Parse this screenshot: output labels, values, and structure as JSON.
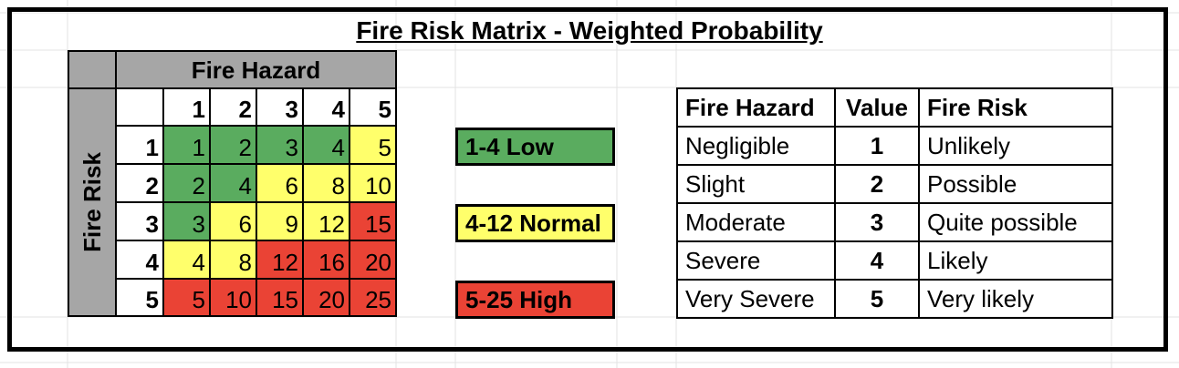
{
  "title": "Fire Risk Matrix - Weighted Probability",
  "matrix": {
    "hazard_label": "Fire Hazard",
    "risk_label": "Fire Risk",
    "columns": [
      "1",
      "2",
      "3",
      "4",
      "5"
    ],
    "rows": [
      {
        "label": "1",
        "cells": [
          "1",
          "2",
          "3",
          "4",
          "5"
        ]
      },
      {
        "label": "2",
        "cells": [
          "2",
          "4",
          "6",
          "8",
          "10"
        ]
      },
      {
        "label": "3",
        "cells": [
          "3",
          "6",
          "9",
          "12",
          "15"
        ]
      },
      {
        "label": "4",
        "cells": [
          "4",
          "8",
          "12",
          "16",
          "20"
        ]
      },
      {
        "label": "5",
        "cells": [
          "5",
          "10",
          "15",
          "20",
          "25"
        ]
      }
    ],
    "level_colors": {
      "low": "#5aac5f",
      "normal": "#ffff6b",
      "high": "#ea4335"
    }
  },
  "legend": {
    "low": "1-4 Low",
    "normal": "4-12 Normal",
    "high": "5-25 High"
  },
  "reference": {
    "headers": [
      "Fire Hazard",
      "Value",
      "Fire Risk"
    ],
    "rows": [
      [
        "Negligible",
        "1",
        "Unlikely"
      ],
      [
        "Slight",
        "2",
        "Possible"
      ],
      [
        "Moderate",
        "3",
        "Quite possible"
      ],
      [
        "Severe",
        "4",
        "Likely"
      ],
      [
        "Very Severe",
        "5",
        "Very likely"
      ]
    ]
  }
}
